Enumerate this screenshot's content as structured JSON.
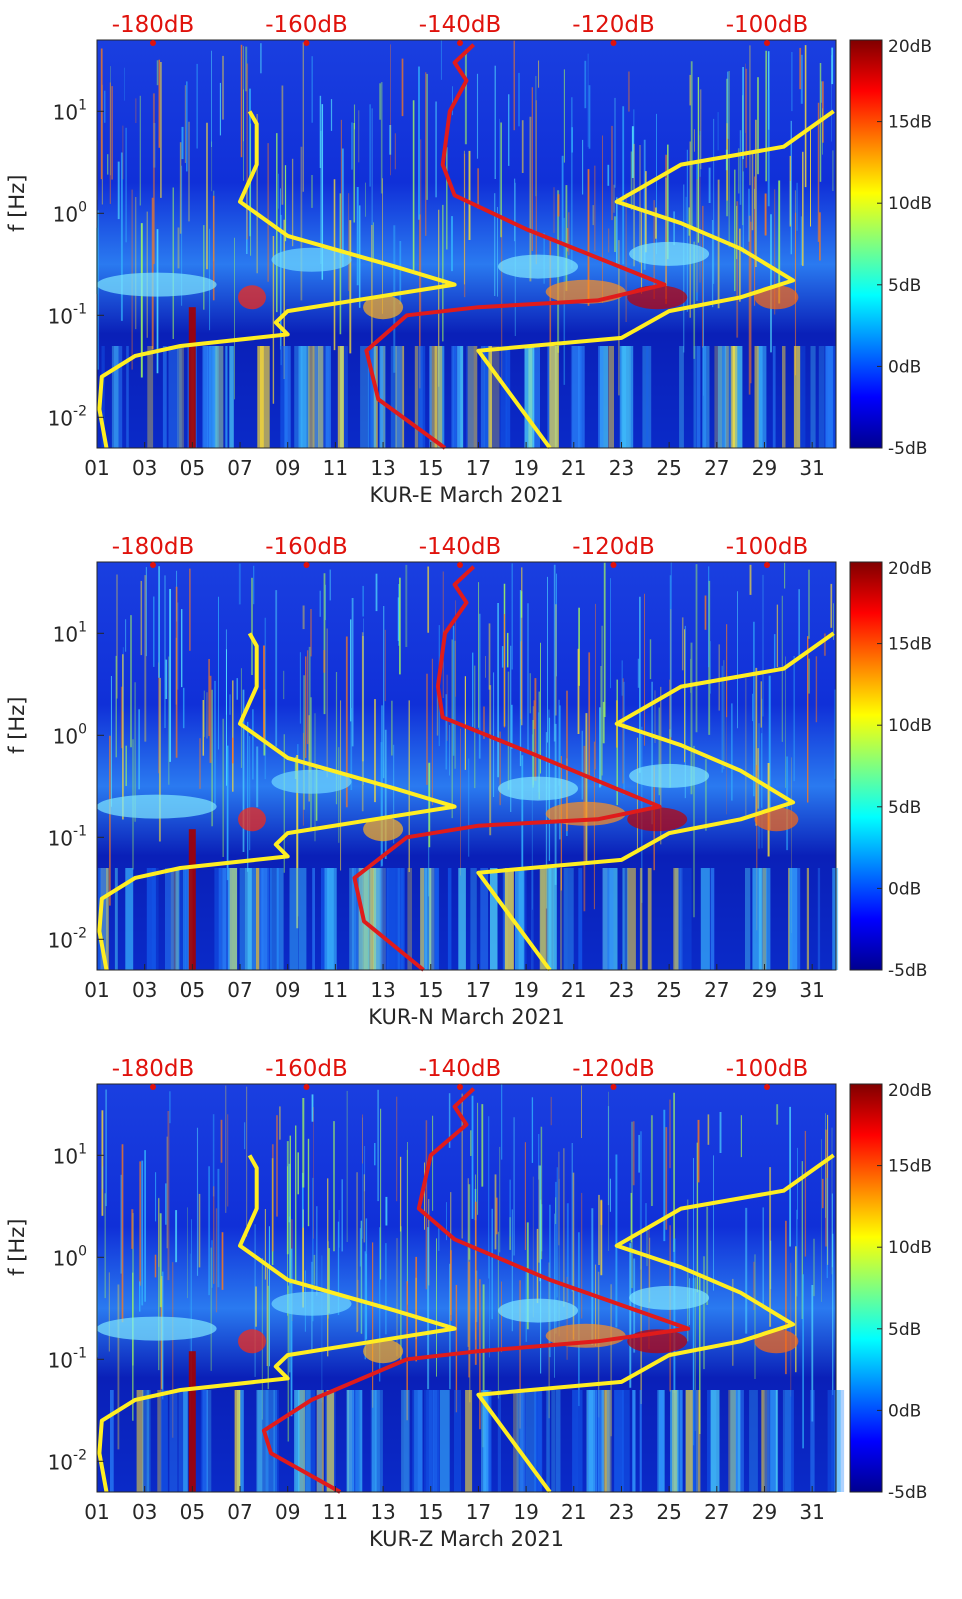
{
  "colors": {
    "background_noise": "#1030d8",
    "model_curve": "#ffee22",
    "median_curve": "#e01b1b",
    "db_scale_text": "#e0120c"
  },
  "chart_data": [
    {
      "type": "heatmap",
      "title": "",
      "xlabel": "KUR-E March 2021",
      "ylabel": "f [Hz]",
      "x_ticks": [
        "01",
        "03",
        "05",
        "07",
        "09",
        "11",
        "13",
        "15",
        "17",
        "19",
        "21",
        "23",
        "25",
        "27",
        "29",
        "31"
      ],
      "y_ticks": [
        "10-2",
        "10-1",
        "100",
        "101"
      ],
      "y_scale": "log",
      "ylim": [
        0.005,
        50
      ],
      "xlim": [
        1,
        32
      ],
      "db_scale_labels": [
        "-180dB",
        "-160dB",
        "-140dB",
        "-120dB",
        "-100dB"
      ],
      "colorbar": {
        "ticks": [
          "-5dB",
          "0dB",
          "5dB",
          "10dB",
          "15dB",
          "20dB"
        ],
        "range": [
          -5,
          20
        ]
      },
      "overlays": [
        {
          "name": "model-curve-1",
          "color": "#ffee22",
          "points": [
            [
              1.4,
              0.005
            ],
            [
              1.1,
              0.012
            ],
            [
              1.2,
              0.025
            ],
            [
              2.6,
              0.04
            ],
            [
              4.5,
              0.05
            ],
            [
              9.0,
              0.065
            ],
            [
              8.5,
              0.085
            ],
            [
              9.0,
              0.11
            ],
            [
              16.0,
              0.2
            ],
            [
              13.5,
              0.3
            ],
            [
              9.0,
              0.6
            ],
            [
              7.0,
              1.3
            ],
            [
              7.7,
              3
            ],
            [
              7.7,
              7.5
            ],
            [
              7.4,
              10
            ]
          ]
        },
        {
          "name": "model-curve-2",
          "color": "#ffee22",
          "points": [
            [
              20.0,
              0.005
            ],
            [
              17.0,
              0.045
            ],
            [
              23.0,
              0.06
            ],
            [
              25.0,
              0.11
            ],
            [
              28.0,
              0.15
            ],
            [
              30.2,
              0.22
            ],
            [
              28.0,
              0.45
            ],
            [
              25.5,
              0.8
            ],
            [
              22.8,
              1.3
            ],
            [
              25.5,
              3
            ],
            [
              29.8,
              4.5
            ],
            [
              31.9,
              10
            ]
          ]
        },
        {
          "name": "median-curve",
          "color": "#e01b1b",
          "points": [
            [
              15.6,
              0.005
            ],
            [
              12.8,
              0.015
            ],
            [
              12.3,
              0.045
            ],
            [
              14.0,
              0.1
            ],
            [
              17.0,
              0.12
            ],
            [
              22.0,
              0.14
            ],
            [
              24.8,
              0.2
            ],
            [
              19.0,
              0.7
            ],
            [
              16.0,
              1.5
            ],
            [
              15.5,
              3
            ],
            [
              15.8,
              10
            ],
            [
              16.5,
              20
            ],
            [
              16.0,
              30
            ],
            [
              16.8,
              45
            ]
          ]
        }
      ]
    },
    {
      "type": "heatmap",
      "title": "",
      "xlabel": "KUR-N March 2021",
      "ylabel": "f [Hz]",
      "x_ticks": [
        "01",
        "03",
        "05",
        "07",
        "09",
        "11",
        "13",
        "15",
        "17",
        "19",
        "21",
        "23",
        "25",
        "27",
        "29",
        "31"
      ],
      "y_ticks": [
        "10-2",
        "10-1",
        "100",
        "101"
      ],
      "y_scale": "log",
      "ylim": [
        0.005,
        50
      ],
      "xlim": [
        1,
        32
      ],
      "db_scale_labels": [
        "-180dB",
        "-160dB",
        "-140dB",
        "-120dB",
        "-100dB"
      ],
      "colorbar": {
        "ticks": [
          "-5dB",
          "0dB",
          "5dB",
          "10dB",
          "15dB",
          "20dB"
        ],
        "range": [
          -5,
          20
        ]
      },
      "overlays": [
        {
          "name": "model-curve-1",
          "color": "#ffee22",
          "points": [
            [
              1.4,
              0.005
            ],
            [
              1.1,
              0.012
            ],
            [
              1.2,
              0.025
            ],
            [
              2.6,
              0.04
            ],
            [
              4.5,
              0.05
            ],
            [
              9.0,
              0.065
            ],
            [
              8.5,
              0.085
            ],
            [
              9.0,
              0.11
            ],
            [
              16.0,
              0.2
            ],
            [
              13.5,
              0.3
            ],
            [
              9.0,
              0.6
            ],
            [
              7.0,
              1.3
            ],
            [
              7.7,
              3
            ],
            [
              7.7,
              7.5
            ],
            [
              7.4,
              10
            ]
          ]
        },
        {
          "name": "model-curve-2",
          "color": "#ffee22",
          "points": [
            [
              20.0,
              0.005
            ],
            [
              17.0,
              0.045
            ],
            [
              23.0,
              0.06
            ],
            [
              25.0,
              0.11
            ],
            [
              28.0,
              0.15
            ],
            [
              30.2,
              0.22
            ],
            [
              28.0,
              0.45
            ],
            [
              25.5,
              0.8
            ],
            [
              22.8,
              1.3
            ],
            [
              25.5,
              3
            ],
            [
              29.8,
              4.5
            ],
            [
              31.9,
              10
            ]
          ]
        },
        {
          "name": "median-curve",
          "color": "#e01b1b",
          "points": [
            [
              14.7,
              0.005
            ],
            [
              12.2,
              0.015
            ],
            [
              11.8,
              0.04
            ],
            [
              14.0,
              0.1
            ],
            [
              17.0,
              0.13
            ],
            [
              22.0,
              0.15
            ],
            [
              24.6,
              0.2
            ],
            [
              19.0,
              0.7
            ],
            [
              15.5,
              1.5
            ],
            [
              15.3,
              3
            ],
            [
              15.6,
              10
            ],
            [
              16.5,
              20
            ],
            [
              16.0,
              30
            ],
            [
              16.8,
              45
            ]
          ]
        }
      ]
    },
    {
      "type": "heatmap",
      "title": "",
      "xlabel": "KUR-Z March 2021",
      "ylabel": "f [Hz]",
      "x_ticks": [
        "01",
        "03",
        "05",
        "07",
        "09",
        "11",
        "13",
        "15",
        "17",
        "19",
        "21",
        "23",
        "25",
        "27",
        "29",
        "31"
      ],
      "y_ticks": [
        "10-2",
        "10-1",
        "100",
        "101"
      ],
      "y_scale": "log",
      "ylim": [
        0.005,
        50
      ],
      "xlim": [
        1,
        32
      ],
      "db_scale_labels": [
        "-180dB",
        "-160dB",
        "-140dB",
        "-120dB",
        "-100dB"
      ],
      "colorbar": {
        "ticks": [
          "-5dB",
          "0dB",
          "5dB",
          "10dB",
          "15dB",
          "20dB"
        ],
        "range": [
          -5,
          20
        ]
      },
      "overlays": [
        {
          "name": "model-curve-1",
          "color": "#ffee22",
          "points": [
            [
              1.4,
              0.005
            ],
            [
              1.1,
              0.012
            ],
            [
              1.2,
              0.025
            ],
            [
              2.6,
              0.04
            ],
            [
              4.5,
              0.05
            ],
            [
              9.0,
              0.065
            ],
            [
              8.5,
              0.085
            ],
            [
              9.0,
              0.11
            ],
            [
              16.0,
              0.2
            ],
            [
              13.5,
              0.3
            ],
            [
              9.0,
              0.6
            ],
            [
              7.0,
              1.3
            ],
            [
              7.7,
              3
            ],
            [
              7.7,
              7.5
            ],
            [
              7.4,
              10
            ]
          ]
        },
        {
          "name": "model-curve-2",
          "color": "#ffee22",
          "points": [
            [
              20.0,
              0.005
            ],
            [
              17.0,
              0.045
            ],
            [
              23.0,
              0.06
            ],
            [
              25.0,
              0.11
            ],
            [
              28.0,
              0.15
            ],
            [
              30.2,
              0.22
            ],
            [
              28.0,
              0.45
            ],
            [
              25.5,
              0.8
            ],
            [
              22.8,
              1.3
            ],
            [
              25.5,
              3
            ],
            [
              29.8,
              4.5
            ],
            [
              31.9,
              10
            ]
          ]
        },
        {
          "name": "median-curve",
          "color": "#e01b1b",
          "points": [
            [
              11.2,
              0.005
            ],
            [
              8.3,
              0.012
            ],
            [
              8.0,
              0.02
            ],
            [
              10.0,
              0.04
            ],
            [
              14.0,
              0.1
            ],
            [
              17.0,
              0.12
            ],
            [
              22.0,
              0.15
            ],
            [
              25.8,
              0.2
            ],
            [
              20.0,
              0.6
            ],
            [
              16.0,
              1.5
            ],
            [
              14.5,
              3
            ],
            [
              15.0,
              10
            ],
            [
              16.5,
              20
            ],
            [
              16.0,
              30
            ],
            [
              16.8,
              45
            ]
          ]
        }
      ]
    }
  ]
}
